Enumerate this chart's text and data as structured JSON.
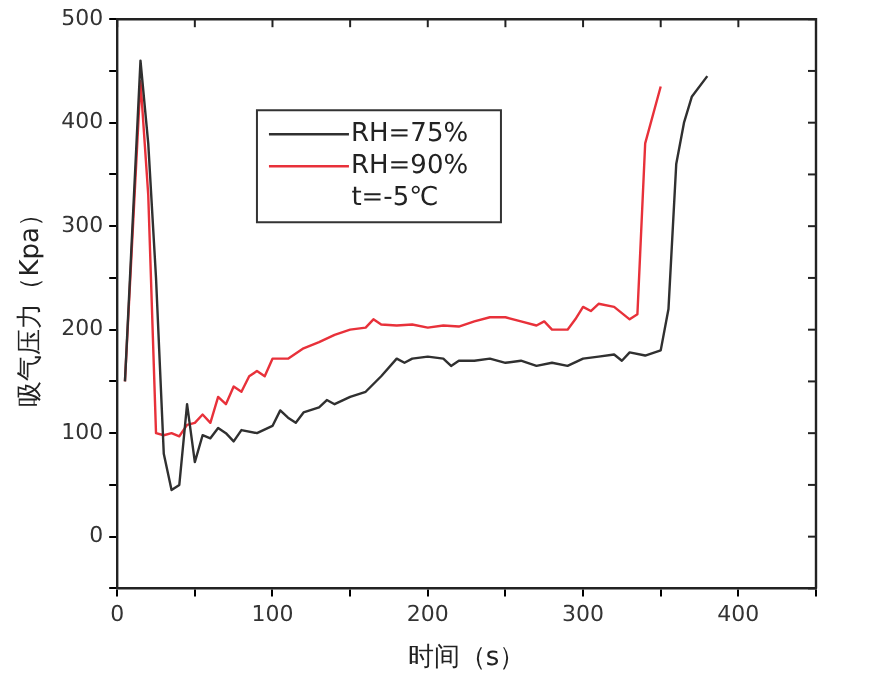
{
  "chart_data": {
    "type": "line",
    "xlabel": "时间（s）",
    "ylabel": "吸气压力（Kpa）",
    "xlim": [
      0,
      450
    ],
    "xticks": [
      0,
      {
        "value": 50,
        "label": null
      },
      100,
      {
        "value": 150,
        "label": null
      },
      200,
      {
        "value": 250,
        "label": null
      },
      300,
      {
        "value": 350,
        "label": null
      },
      400,
      {
        "value": 450,
        "label": null
      }
    ],
    "ylim": [
      -50,
      500
    ],
    "yticks": [
      {
        "value": -50,
        "label": null
      },
      0,
      {
        "value": 50,
        "label": null
      },
      100,
      {
        "value": 150,
        "label": null
      },
      200,
      {
        "value": 250,
        "label": null
      },
      300,
      {
        "value": 350,
        "label": null
      },
      400,
      {
        "value": 450,
        "label": null
      },
      500
    ],
    "grid": false,
    "legend": "top left",
    "marker": "none",
    "line_style": "solid",
    "annotations": [
      "t=-5℃"
    ],
    "series": [
      {
        "name": "RH=75%",
        "color": "#303030",
        "x": [
          5,
          15,
          20,
          25,
          30,
          35,
          40,
          45,
          50,
          55,
          60,
          65,
          70,
          75,
          80,
          90,
          100,
          105,
          110,
          115,
          120,
          130,
          135,
          140,
          150,
          160,
          170,
          180,
          185,
          190,
          200,
          210,
          215,
          220,
          230,
          240,
          250,
          260,
          270,
          280,
          290,
          300,
          310,
          320,
          325,
          330,
          340,
          350,
          355,
          360,
          365,
          370,
          380
        ],
        "values": [
          150,
          460,
          380,
          250,
          80,
          45,
          50,
          128,
          72,
          98,
          95,
          105,
          100,
          92,
          103,
          100,
          107,
          122,
          115,
          110,
          120,
          125,
          132,
          128,
          135,
          140,
          155,
          172,
          168,
          172,
          174,
          172,
          165,
          170,
          170,
          172,
          168,
          170,
          165,
          168,
          165,
          172,
          174,
          176,
          170,
          178,
          175,
          180,
          220,
          360,
          400,
          425,
          445
        ]
      },
      {
        "name": "RH=90%",
        "color": "#e8313a",
        "x": [
          5,
          15,
          20,
          25,
          30,
          35,
          40,
          45,
          50,
          55,
          60,
          65,
          70,
          75,
          80,
          85,
          90,
          95,
          100,
          110,
          120,
          130,
          140,
          150,
          160,
          165,
          170,
          180,
          190,
          200,
          210,
          220,
          230,
          240,
          250,
          260,
          270,
          275,
          280,
          290,
          295,
          300,
          305,
          310,
          320,
          330,
          335,
          340,
          350
        ],
        "values": [
          150,
          440,
          330,
          100,
          98,
          100,
          97,
          108,
          110,
          118,
          110,
          135,
          128,
          145,
          140,
          155,
          160,
          155,
          172,
          172,
          182,
          188,
          195,
          200,
          202,
          210,
          205,
          204,
          205,
          202,
          204,
          203,
          208,
          212,
          212,
          208,
          204,
          208,
          200,
          200,
          210,
          222,
          218,
          225,
          222,
          210,
          215,
          380,
          435
        ]
      }
    ]
  }
}
